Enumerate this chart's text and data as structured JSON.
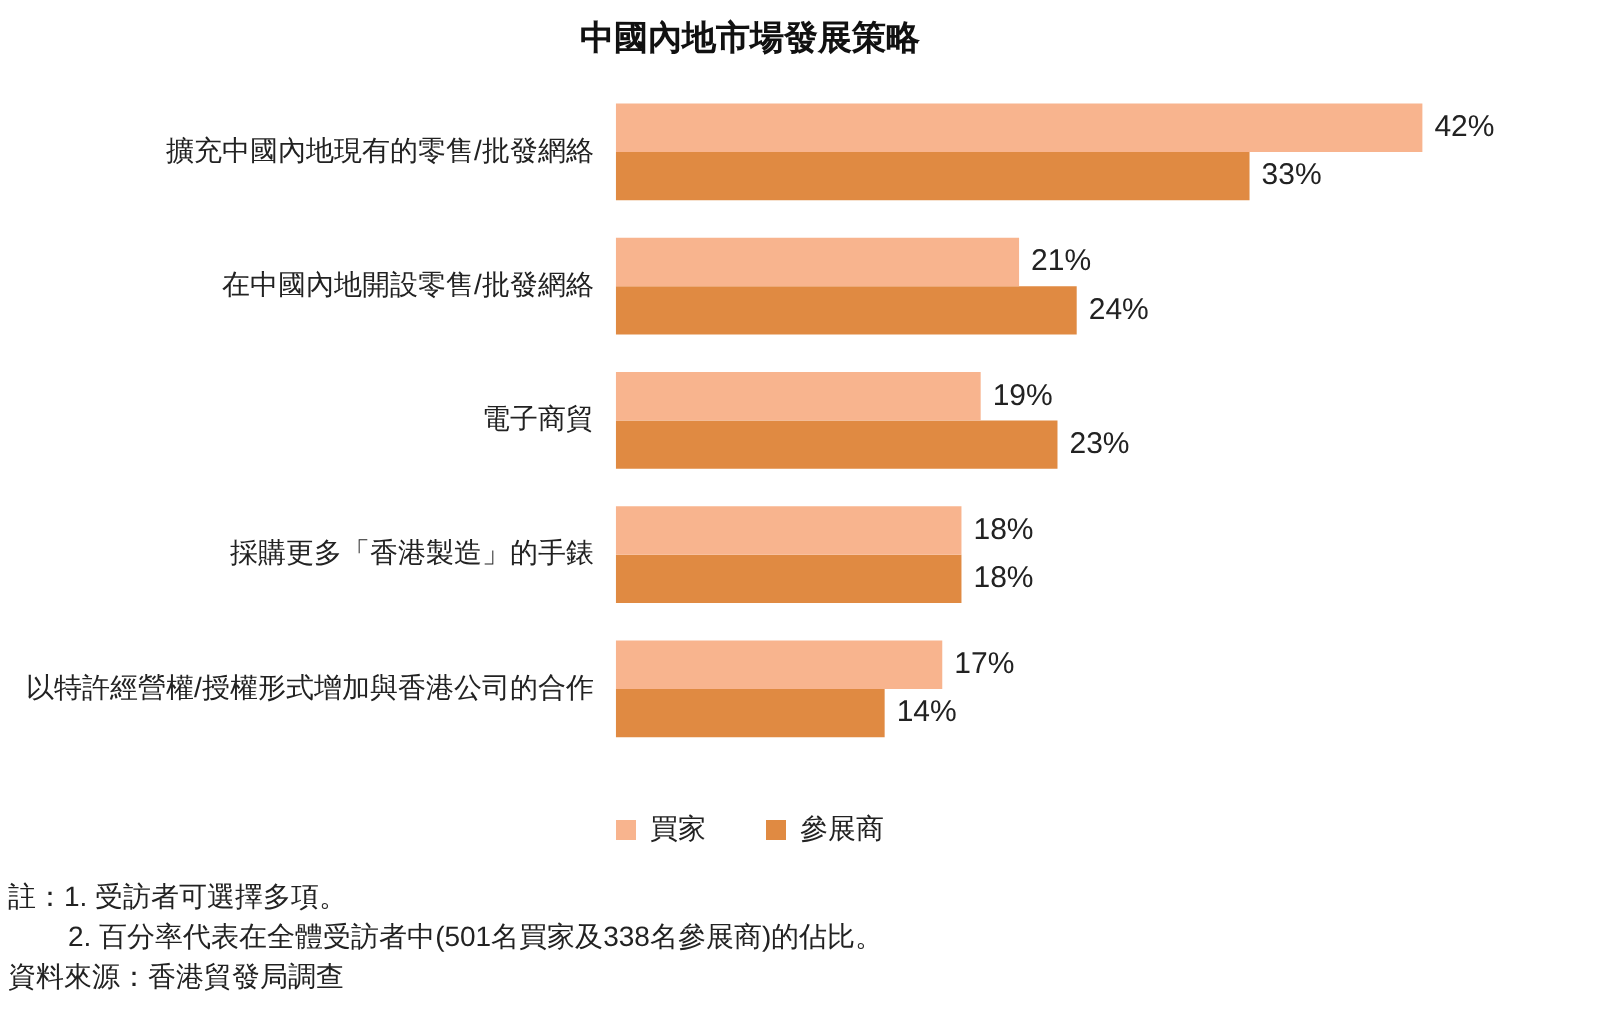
{
  "chart_data": {
    "type": "bar",
    "orientation": "horizontal",
    "title": "中國內地市場發展策略",
    "categories": [
      "擴充中國內地現有的零售/批發網絡",
      "在中國內地開設零售/批發網絡",
      "電子商貿",
      "採購更多「香港製造」的手錶",
      "以特許經營權/授權形式增加與香港公司的合作"
    ],
    "series": [
      {
        "name": "買家",
        "color": "#f8b48e",
        "values": [
          42,
          21,
          19,
          18,
          17
        ],
        "value_labels": [
          "42%",
          "21%",
          "19%",
          "18%",
          "17%"
        ]
      },
      {
        "name": "參展商",
        "color": "#e08a42",
        "values": [
          33,
          24,
          23,
          18,
          14
        ],
        "value_labels": [
          "33%",
          "24%",
          "23%",
          "18%",
          "14%"
        ]
      }
    ],
    "legend": "bottom",
    "grid": false,
    "annotations": [
      "註：1. 受訪者可選擇多項。",
      "2. 百分率代表在全體受訪者中(501名買家及338名參展商)的佔比。",
      "資料來源：香港貿發局調查"
    ]
  }
}
